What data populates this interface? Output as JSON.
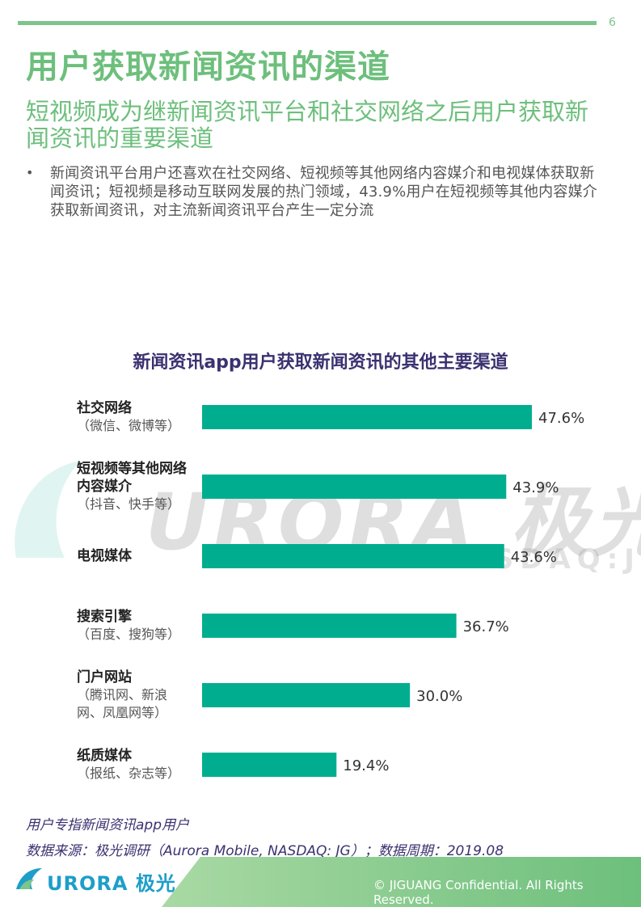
{
  "page": {
    "number": "6"
  },
  "title": "用户获取新闻资讯的渠道",
  "subtitle": "短视频成为继新闻资讯平台和社交网络之后用户获取新闻资讯的重要渠道",
  "bullet": "新闻资讯平台用户还喜欢在社交网络、短视频等其他网络内容媒介和电视媒体获取新闻资讯；短视频是移动互联网发展的热门领域，43.9%用户在短视频等其他内容媒介获取新闻资讯，对主流新闻资讯平台产生一定分流",
  "watermark": {
    "logo": "URORA 极光",
    "sub": "NASDAQ:JG"
  },
  "chart_data": {
    "type": "bar",
    "orientation": "horizontal",
    "title": "新闻资讯app用户获取新闻资讯的其他主要渠道",
    "categories": [
      {
        "name": "社交网络",
        "sub": "（微信、微博等）"
      },
      {
        "name": "短视频等其他网络\n内容媒介",
        "sub": "（抖音、快手等）"
      },
      {
        "name": "电视媒体",
        "sub": ""
      },
      {
        "name": "搜索引擎",
        "sub": "（百度、搜狗等）"
      },
      {
        "name": "门户网站",
        "sub": "（腾讯网、新浪\n网、凤凰网等）"
      },
      {
        "name": "纸质媒体",
        "sub": "（报纸、杂志等）"
      }
    ],
    "values": [
      47.6,
      43.9,
      43.6,
      36.7,
      30.0,
      19.4
    ],
    "labels": [
      "47.6%",
      "43.9%",
      "43.6%",
      "36.7%",
      "30.0%",
      "19.4%"
    ],
    "xlim": [
      0,
      100
    ],
    "bar_color": "#00ae8f",
    "grid": false
  },
  "footnotes": {
    "note": "用户专指新闻资讯app用户",
    "source": "数据来源：极光调研（Aurora Mobile, NASDAQ: JG）；数据周期：2019.08"
  },
  "footer": {
    "logo_text": "URORA 极光",
    "copyright": "© JIGUANG Confidential. All Rights Reserved."
  },
  "colors": {
    "accent": "#6dbf7c",
    "chart_title": "#3a3170",
    "footer_green": "#7cc68b"
  }
}
